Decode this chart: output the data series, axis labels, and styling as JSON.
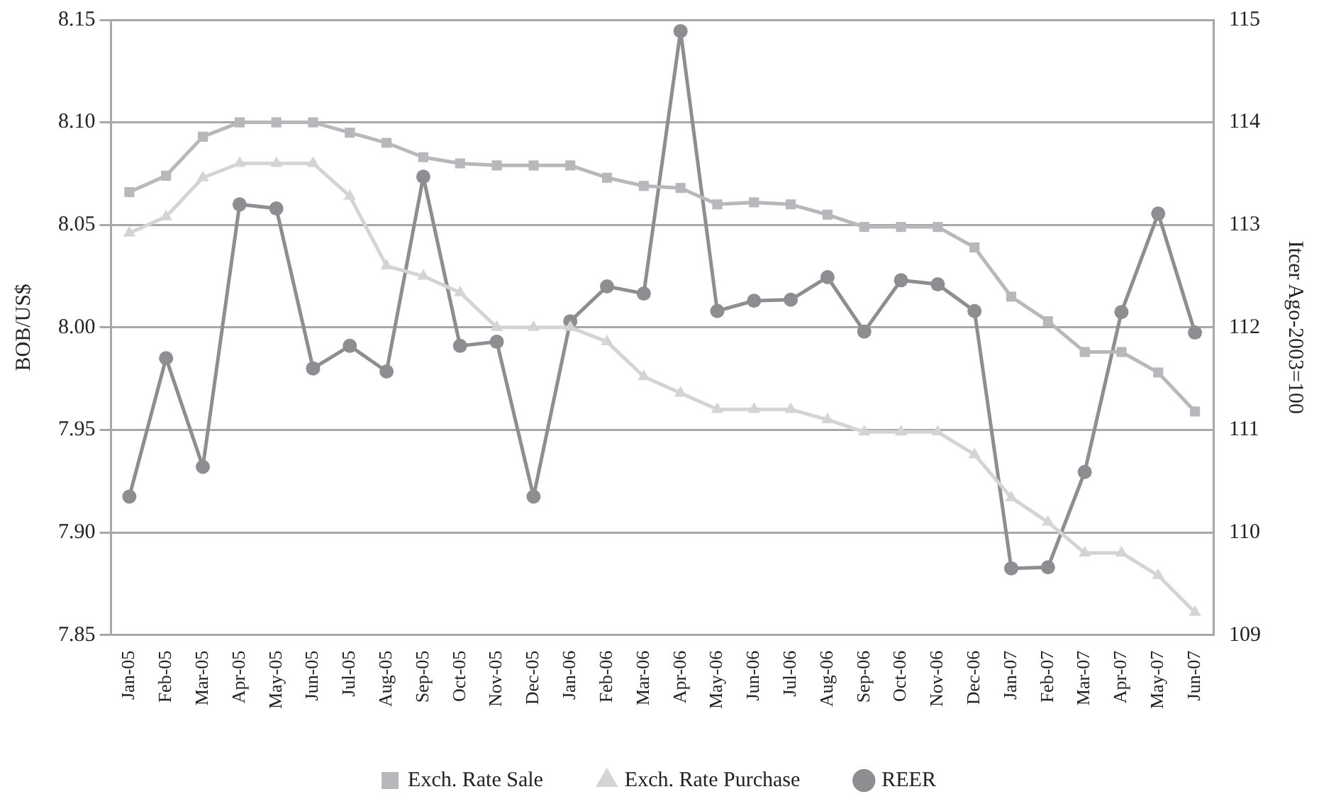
{
  "chart_data": {
    "type": "line",
    "ylabel": "BOB/US$",
    "y2label": "Itcer Ago-2003=100",
    "categories": [
      "Jan-05",
      "Feb-05",
      "Mar-05",
      "Apr-05",
      "May-05",
      "Jun-05",
      "Jul-05",
      "Aug-05",
      "Sep-05",
      "Oct-05",
      "Nov-05",
      "Dec-05",
      "Jan-06",
      "Feb-06",
      "Mar-06",
      "Apr-06",
      "May-06",
      "Jun-06",
      "Jul-06",
      "Aug-06",
      "Sep-06",
      "Oct-06",
      "Nov-06",
      "Dec-06",
      "Jan-07",
      "Feb-07",
      "Mar-07",
      "Apr-07",
      "May-07",
      "Jun-07"
    ],
    "series": [
      {
        "name": "Exch. Rate Sale",
        "color": "#b8b8bc",
        "marker": "square",
        "values": [
          8.066,
          8.074,
          8.093,
          8.1,
          8.1,
          8.1,
          8.095,
          8.09,
          8.083,
          8.08,
          8.079,
          8.079,
          8.079,
          8.073,
          8.069,
          8.068,
          8.06,
          8.061,
          8.06,
          8.055,
          8.049,
          8.049,
          8.049,
          8.039,
          8.015,
          8.003,
          7.988,
          7.988,
          7.978,
          7.959
        ]
      },
      {
        "name": "Exch. Rate Purchase",
        "color": "#d4d4d4",
        "marker": "triangle",
        "values": [
          8.046,
          8.054,
          8.073,
          8.08,
          8.08,
          8.08,
          8.064,
          8.03,
          8.025,
          8.017,
          8.0,
          8.0,
          8.0,
          7.993,
          7.976,
          7.968,
          7.96,
          7.96,
          7.96,
          7.955,
          7.949,
          7.949,
          7.949,
          7.938,
          7.917,
          7.905,
          7.89,
          7.89,
          7.879,
          7.861
        ]
      },
      {
        "name": "REER",
        "color": "#8e8e92",
        "marker": "circle",
        "axis": "y2",
        "values": [
          110.35,
          111.7,
          110.64,
          113.2,
          113.16,
          111.6,
          111.82,
          111.57,
          113.47,
          111.82,
          111.86,
          110.35,
          112.06,
          112.4,
          112.33,
          114.89,
          112.16,
          112.26,
          112.27,
          112.49,
          111.96,
          112.46,
          112.42,
          112.16,
          109.65,
          109.66,
          110.59,
          112.15,
          113.11,
          111.95
        ]
      }
    ],
    "ylim": [
      7.85,
      8.15
    ],
    "yticks": [
      {
        "value": 7.85,
        "label": "7.85"
      },
      {
        "value": 7.9,
        "label": "7.90"
      },
      {
        "value": 7.95,
        "label": "7.95"
      },
      {
        "value": 8.0,
        "label": "8.00"
      },
      {
        "value": 8.05,
        "label": "8.05"
      },
      {
        "value": 8.1,
        "label": "8.10"
      },
      {
        "value": 8.15,
        "label": "8.15"
      }
    ],
    "y2lim": [
      109,
      115
    ],
    "y2ticks": [
      109,
      110,
      111,
      112,
      113,
      114,
      115
    ],
    "grid": "y",
    "legend": "bottom",
    "line_style": "solid"
  }
}
